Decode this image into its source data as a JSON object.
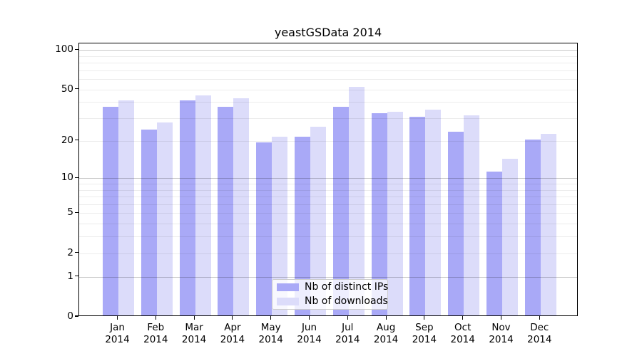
{
  "figure": {
    "title": "yeastGSData 2014"
  },
  "chart_data": {
    "type": "bar",
    "title": "yeastGSData 2014",
    "xlabel": "",
    "ylabel": "",
    "x_months": [
      "Jan",
      "Feb",
      "Mar",
      "Apr",
      "May",
      "Jun",
      "Jul",
      "Aug",
      "Sep",
      "Oct",
      "Nov",
      "Dec"
    ],
    "x_year": "2014",
    "series": [
      {
        "name": "Nb of distinct IPs",
        "color": "#a9a9f7",
        "values": [
          36,
          24,
          40,
          36,
          19,
          21,
          36,
          32,
          30,
          23,
          11,
          20
        ]
      },
      {
        "name": "Nb of downloads",
        "color": "#dcdcfa",
        "values": [
          40,
          27,
          44,
          42,
          21,
          25,
          51,
          33,
          34,
          31,
          14,
          22
        ]
      }
    ],
    "y_scale": "log10(1+x)",
    "ylim": [
      0,
      100
    ],
    "y_tick_values": [
      0,
      1,
      2,
      5,
      10,
      20,
      50,
      100
    ],
    "y_grid_major": [
      1,
      10,
      100
    ],
    "y_grid_minor": [
      2,
      3,
      4,
      5,
      6,
      7,
      8,
      9,
      20,
      30,
      40,
      50,
      60,
      70,
      80,
      90
    ],
    "grid": true,
    "grid_above_bars": true,
    "legend_position": "lower center",
    "colors": {
      "background": "#ffffff",
      "spine": "#000000",
      "grid_major": "rgba(0,0,0,0.22)",
      "grid_minor": "rgba(0,0,0,0.075)",
      "legend_border": "#cccccc"
    }
  }
}
